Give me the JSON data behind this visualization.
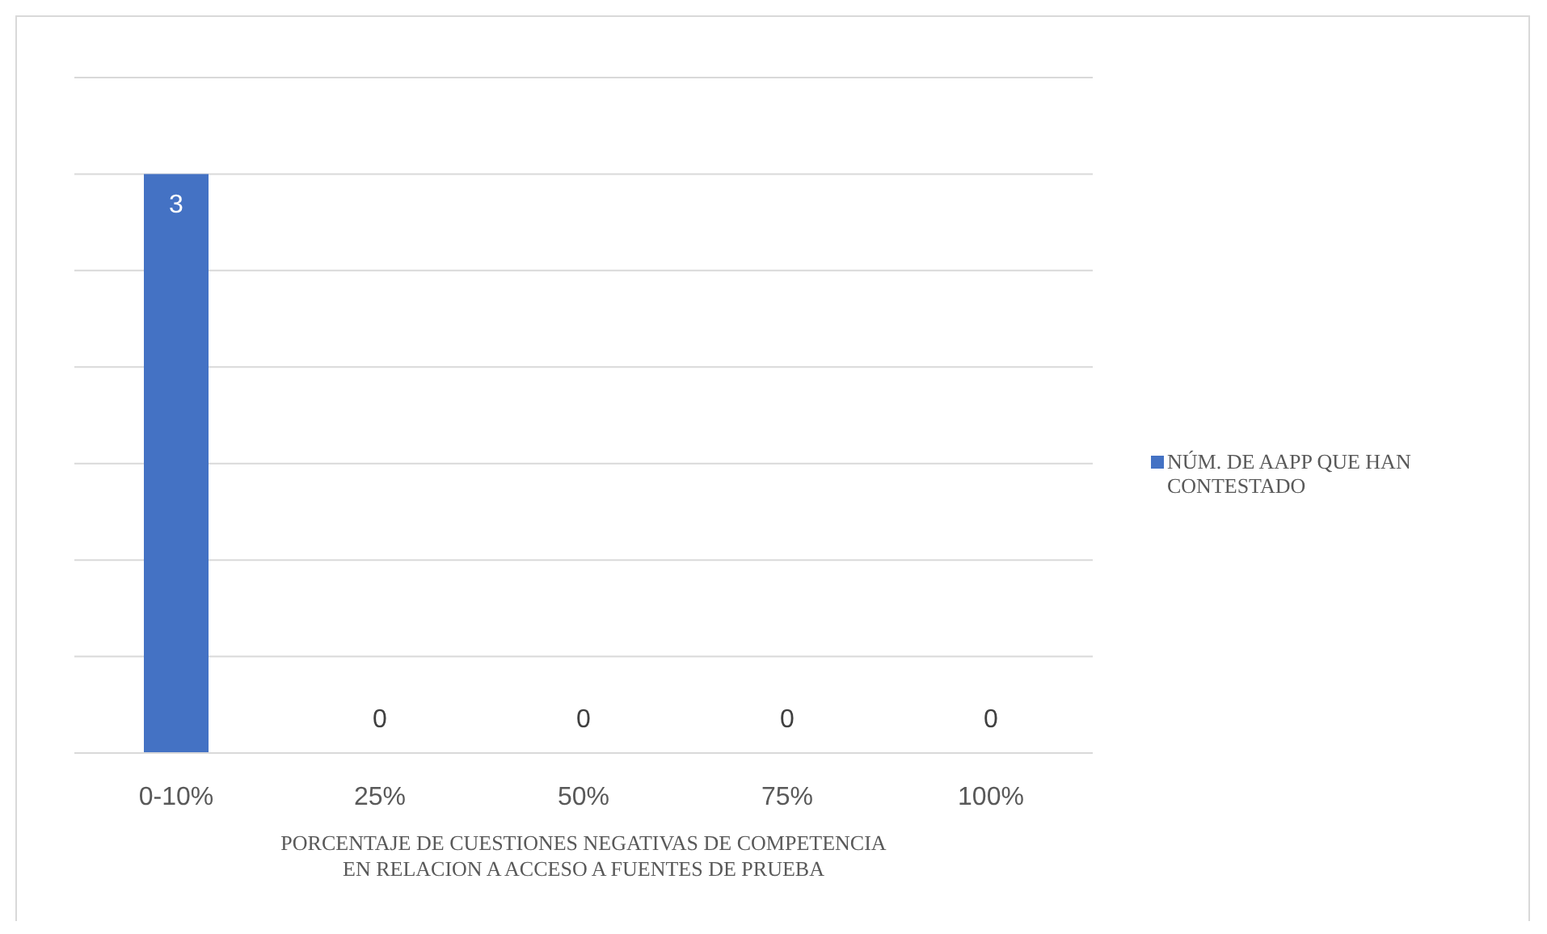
{
  "chart_data": {
    "type": "bar",
    "xlabel": "PORCENTAJE DE CUESTIONES NEGATIVAS DE COMPETENCIA EN RELACION A ACCESO A FUENTES DE PRUEBA",
    "categories": [
      "0-10%",
      "25%",
      "50%",
      "75%",
      "100%"
    ],
    "series": [
      {
        "name": "NÚM. DE AAPP QUE HAN CONTESTADO",
        "color": "#4472c4",
        "values": [
          3,
          0,
          0,
          0,
          0
        ]
      }
    ],
    "ylim": [
      0,
      3.5
    ],
    "yticks": [
      {
        "value": 0,
        "label": null
      },
      {
        "value": 0.5,
        "label": null
      },
      {
        "value": 1,
        "label": null
      },
      {
        "value": 1.5,
        "label": null
      },
      {
        "value": 2,
        "label": null
      },
      {
        "value": 2.5,
        "label": null
      },
      {
        "value": 3,
        "label": null
      },
      {
        "value": 3.5,
        "label": null
      }
    ],
    "grid": "y",
    "tick_labels": "x",
    "data_labels": true,
    "legend": "right"
  }
}
